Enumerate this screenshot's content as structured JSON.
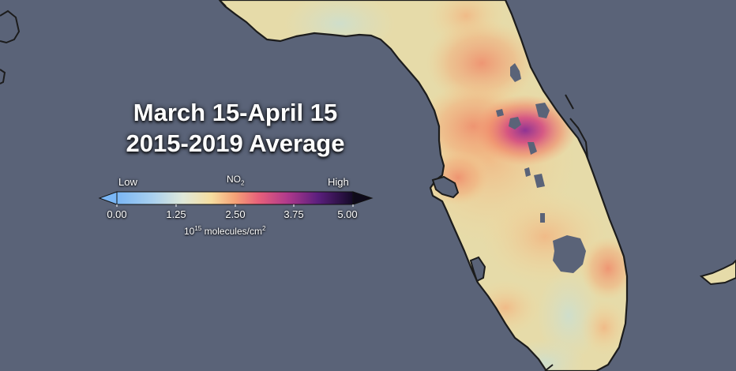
{
  "title_line1": "March 15-April 15",
  "title_line2": "2015-2019 Average",
  "legend": {
    "low_label": "Low",
    "high_label": "High",
    "variable": "NO",
    "variable_subscript": "2",
    "ticks": [
      "0.00",
      "1.25",
      "2.50",
      "3.75",
      "5.00"
    ],
    "units_base": "10",
    "units_exponent": "15",
    "units_text": " molecules/cm",
    "units_exponent2": "2",
    "range": [
      0,
      5
    ],
    "colors": [
      "#7ab6f5",
      "#bde0e8",
      "#f3e3a8",
      "#f5a277",
      "#e0527a",
      "#8a2a91",
      "#1a0a2e"
    ]
  },
  "map": {
    "water_color": "#5a6378",
    "land_color": "#e6dba9",
    "coast_color": "#1c1c1c"
  }
}
